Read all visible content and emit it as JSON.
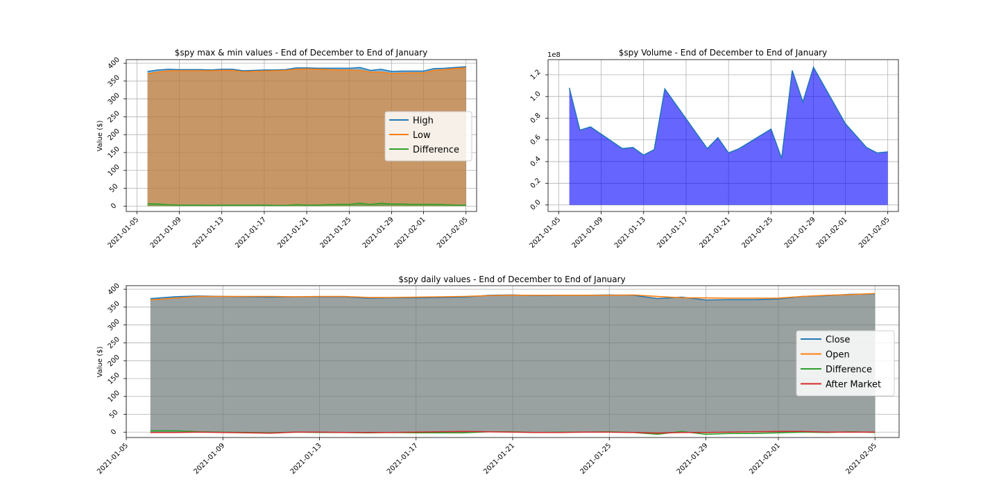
{
  "chart_data": [
    {
      "type": "area",
      "title": "$spy max & min values - End of December to End of January",
      "xlabel": "",
      "ylabel": "Value ($)",
      "x_ticks": [
        "2021-01-05",
        "2021-01-09",
        "2021-01-13",
        "2021-01-17",
        "2021-01-21",
        "2021-01-25",
        "2021-01-29",
        "2021-02-01",
        "2021-02-05"
      ],
      "y_ticks": [
        "0",
        "50",
        "100",
        "150",
        "200",
        "250",
        "300",
        "350",
        "400"
      ],
      "ylim": [
        -15,
        410
      ],
      "xlim": [
        "2021-01-04",
        "2021-02-06"
      ],
      "grid": true,
      "legend_position": "center-right",
      "x": [
        "2021-01-06",
        "2021-01-07",
        "2021-01-08",
        "2021-01-09",
        "2021-01-10",
        "2021-01-11",
        "2021-01-12",
        "2021-01-13",
        "2021-01-14",
        "2021-01-15",
        "2021-01-16",
        "2021-01-17",
        "2021-01-18",
        "2021-01-19",
        "2021-01-20",
        "2021-01-21",
        "2021-01-22",
        "2021-01-23",
        "2021-01-24",
        "2021-01-25",
        "2021-01-26",
        "2021-01-27",
        "2021-01-28",
        "2021-01-29",
        "2021-01-30",
        "2021-01-31",
        "2021-02-01",
        "2021-02-02",
        "2021-02-03",
        "2021-02-04",
        "2021-02-05"
      ],
      "series": [
        {
          "name": "High",
          "color": "#1f77b4",
          "values": [
            377,
            381,
            383,
            382,
            382,
            382,
            381,
            383,
            383,
            379,
            380,
            381,
            381,
            382,
            387,
            387,
            386,
            386,
            386,
            386,
            388,
            380,
            383,
            377,
            378,
            378,
            378,
            385,
            386,
            388,
            390
          ]
        },
        {
          "name": "Low",
          "color": "#ff7f0e",
          "values": [
            370,
            375,
            379,
            379,
            379,
            379,
            379,
            380,
            380,
            376,
            377,
            378,
            379,
            380,
            383,
            384,
            383,
            382,
            381,
            381,
            380,
            375,
            375,
            371,
            372,
            373,
            373,
            380,
            382,
            385,
            387
          ]
        },
        {
          "name": "Difference",
          "color": "#2ca02c",
          "values": [
            7,
            6,
            4,
            3,
            3,
            3,
            2,
            3,
            3,
            3,
            3,
            3,
            2,
            2,
            4,
            3,
            3,
            4,
            5,
            5,
            8,
            5,
            8,
            6,
            6,
            5,
            5,
            5,
            4,
            3,
            3
          ]
        }
      ]
    },
    {
      "type": "area",
      "title": "$spy Volume - End of December to End of January",
      "xlabel": "",
      "ylabel": "",
      "offset_label": "1e8",
      "color": "#0000ff",
      "x_ticks": [
        "2021-01-05",
        "2021-01-09",
        "2021-01-13",
        "2021-01-17",
        "2021-01-21",
        "2021-01-25",
        "2021-01-29",
        "2021-02-01",
        "2021-02-05"
      ],
      "y_ticks": [
        "0.0",
        "0.2",
        "0.4",
        "0.6",
        "0.8",
        "1.0",
        "1.2"
      ],
      "ylim": [
        -0.06,
        1.34
      ],
      "xlim": [
        "2021-01-04",
        "2021-02-06"
      ],
      "grid": true,
      "x": [
        "2021-01-06",
        "2021-01-07",
        "2021-01-08",
        "2021-01-11",
        "2021-01-12",
        "2021-01-13",
        "2021-01-14",
        "2021-01-15",
        "2021-01-19",
        "2021-01-20",
        "2021-01-21",
        "2021-01-22",
        "2021-01-25",
        "2021-01-26",
        "2021-01-27",
        "2021-01-28",
        "2021-01-29",
        "2021-02-01",
        "2021-02-02",
        "2021-02-03",
        "2021-02-04",
        "2021-02-05"
      ],
      "values": [
        1.08,
        0.69,
        0.72,
        0.52,
        0.53,
        0.46,
        0.51,
        1.07,
        0.52,
        0.62,
        0.48,
        0.52,
        0.7,
        0.43,
        1.24,
        0.95,
        1.27,
        0.75,
        0.64,
        0.53,
        0.48,
        0.49
      ]
    },
    {
      "type": "area",
      "title": "$spy daily values - End of December to End of January",
      "xlabel": "",
      "ylabel": "Value ($)",
      "x_ticks": [
        "2021-01-05",
        "2021-01-09",
        "2021-01-13",
        "2021-01-17",
        "2021-01-21",
        "2021-01-25",
        "2021-01-29",
        "2021-02-01",
        "2021-02-05"
      ],
      "y_ticks": [
        "0",
        "50",
        "100",
        "150",
        "200",
        "250",
        "300",
        "350",
        "400"
      ],
      "ylim": [
        -15,
        410
      ],
      "xlim": [
        "2021-01-05",
        "2021-02-06"
      ],
      "grid": true,
      "legend_position": "center-right",
      "x": [
        "2021-01-06",
        "2021-01-07",
        "2021-01-08",
        "2021-01-09",
        "2021-01-10",
        "2021-01-11",
        "2021-01-12",
        "2021-01-13",
        "2021-01-14",
        "2021-01-15",
        "2021-01-16",
        "2021-01-17",
        "2021-01-18",
        "2021-01-19",
        "2021-01-20",
        "2021-01-21",
        "2021-01-22",
        "2021-01-23",
        "2021-01-24",
        "2021-01-25",
        "2021-01-26",
        "2021-01-27",
        "2021-01-28",
        "2021-01-29",
        "2021-01-30",
        "2021-01-31",
        "2021-02-01",
        "2021-02-02",
        "2021-02-03",
        "2021-02-04",
        "2021-02-05"
      ],
      "series": [
        {
          "name": "Close",
          "color": "#1f77b4",
          "values": [
            374,
            379,
            381,
            380,
            379,
            378,
            379,
            379,
            379,
            375,
            376,
            376,
            377,
            378,
            383,
            384,
            382,
            383,
            383,
            384,
            383,
            374,
            378,
            370,
            371,
            371,
            373,
            380,
            382,
            386,
            387
          ]
        },
        {
          "name": "Open",
          "color": "#ff7f0e",
          "values": [
            370,
            375,
            380,
            380,
            380,
            380,
            379,
            380,
            380,
            377,
            377,
            378,
            379,
            380,
            382,
            383,
            383,
            383,
            383,
            383,
            384,
            380,
            376,
            376,
            375,
            375,
            375,
            380,
            383,
            385,
            388
          ]
        },
        {
          "name": "Difference",
          "color": "#2ca02c",
          "values": [
            4,
            4,
            1,
            0,
            -1,
            -2,
            0,
            -1,
            -1,
            -2,
            -1,
            -2,
            -2,
            -2,
            1,
            1,
            -1,
            0,
            0,
            1,
            -1,
            -6,
            2,
            -6,
            -4,
            -4,
            -2,
            0,
            -1,
            1,
            -1
          ]
        },
        {
          "name": "After Market",
          "color": "#d62728",
          "values": [
            -1,
            -1,
            0,
            -1,
            -2,
            -3,
            0,
            0,
            -1,
            -1,
            -1,
            0,
            1,
            2,
            1,
            0,
            -1,
            -1,
            0,
            0,
            -1,
            -3,
            -1,
            -1,
            0,
            1,
            2,
            2,
            0,
            0,
            0
          ]
        }
      ]
    }
  ]
}
